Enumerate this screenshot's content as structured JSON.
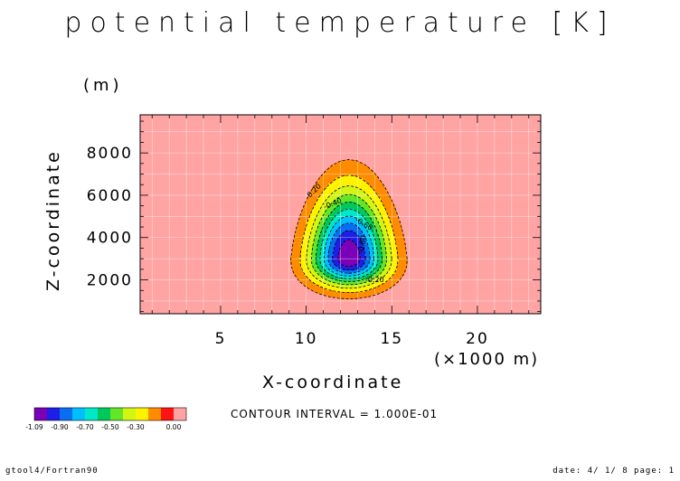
{
  "chart_data": {
    "type": "heatmap",
    "title": "potential temperature [K]",
    "xlabel": "X-coordinate",
    "x_unit": "(×1000 m)",
    "ylabel": "Z-coordinate",
    "y_unit": "(m)",
    "xlim": [
      0.3,
      23.7
    ],
    "ylim": [
      400,
      9800
    ],
    "x_ticks": [
      5,
      10,
      15,
      20
    ],
    "y_ticks": [
      2000,
      4000,
      6000,
      8000
    ],
    "grid": true,
    "anomaly_center": {
      "x": 12.5,
      "z": 3000
    },
    "min_value": -1.09,
    "contour_interval_text": "CONTOUR INTERVAL = 1.000E-01",
    "contour_labels": [
      {
        "text": "-0.20",
        "x": 10.5,
        "z": 6100,
        "rot": -45
      },
      {
        "text": "-0.40",
        "x": 11.6,
        "z": 5500,
        "rot": -22
      },
      {
        "text": "-0.60",
        "x": 13.3,
        "z": 4550,
        "rot": 30
      },
      {
        "text": "-0.80",
        "x": 13.4,
        "z": 3650,
        "rot": -80
      },
      {
        "text": "-0.20",
        "x": 14.0,
        "z": 1900,
        "rot": 0
      }
    ],
    "colorbar": {
      "levels": [
        -1.09,
        -1.0,
        -0.9,
        -0.8,
        -0.7,
        -0.6,
        -0.5,
        -0.4,
        -0.3,
        -0.2,
        -0.1,
        0.0
      ],
      "colors": [
        "#7b00b8",
        "#1e1ee6",
        "#0a6ef0",
        "#00bfff",
        "#00e8c8",
        "#00c85a",
        "#64e628",
        "#d2f514",
        "#fff200",
        "#ff8c00",
        "#ff1414",
        "#ffa3a3"
      ],
      "tick_labels": [
        "-1.09",
        "-0.90",
        "-0.70",
        "-0.50",
        "-0.30",
        "0.00"
      ]
    }
  },
  "labels": {
    "footer_left": "gtool4/Fortran90",
    "footer_right": "date: 4/ 1/ 8 page: 1"
  }
}
